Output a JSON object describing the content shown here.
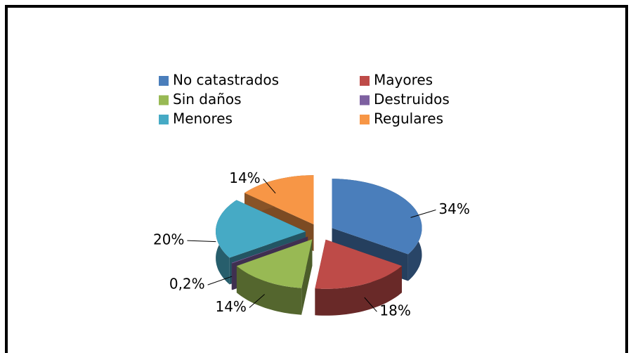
{
  "chart_data": {
    "type": "pie3d",
    "categories": [
      "No catastrados",
      "Mayores",
      "Sin daños",
      "Destruidos",
      "Menores",
      "Regulares"
    ],
    "values": [
      34,
      18,
      14,
      0.2,
      20,
      14
    ],
    "value_labels": [
      "34%",
      "18%",
      "14%",
      "0,2%",
      "20%",
      "14%"
    ],
    "colors": [
      "#4a7ebb",
      "#be4b48",
      "#98b954",
      "#7d60a0",
      "#46aac5",
      "#f79646"
    ],
    "legend": "top"
  }
}
